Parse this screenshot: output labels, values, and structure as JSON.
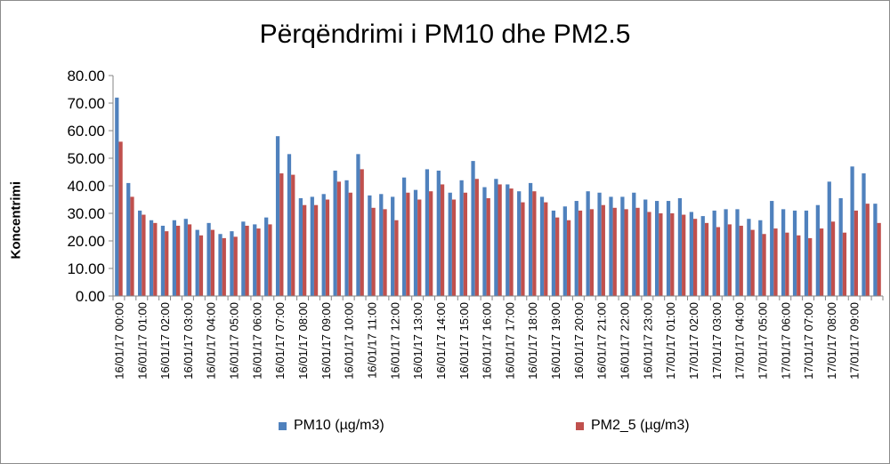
{
  "chart_data": {
    "type": "bar",
    "title": "Përqëndrimi i PM10 dhe PM2.5",
    "ylabel": "Koncentrimi",
    "xlabel": "",
    "ylim": [
      0,
      80
    ],
    "yticks": [
      "0.00",
      "10.00",
      "20.00",
      "30.00",
      "40.00",
      "50.00",
      "60.00",
      "70.00",
      "80.00"
    ],
    "grid": false,
    "legend_position": "bottom",
    "tick_labels": [
      "16/01/17 00:00",
      "16/01/17 01:00",
      "16/01/17 02:00",
      "16/01/17 03:00",
      "16/01/17 04:00",
      "16/01/17 05:00",
      "16/01/17 06:00",
      "16/01/17 07:00",
      "16/01/17 08:00",
      "16/01/17 09:00",
      "16/01/17 10:00",
      "16/01/17 11:00",
      "16/01/17 12:00",
      "16/01/17 13:00",
      "16/01/17 14:00",
      "16/01/17 15:00",
      "16/01/17 16:00",
      "16/01/17 17:00",
      "16/01/17 18:00",
      "16/01/17 19:00",
      "16/01/17 20:00",
      "16/01/17 21:00",
      "16/01/17 22:00",
      "16/01/17 23:00",
      "17/01/17 01:00",
      "17/01/17 02:00",
      "17/01/17 03:00",
      "17/01/17 04:00",
      "17/01/17 05:00",
      "17/01/17 06:00",
      "17/01/17 07:00",
      "17/01/17 08:00",
      "17/01/17 09:00"
    ],
    "series": [
      {
        "name": "PM10 (µg/m3)",
        "color": "#4f81bd",
        "values": [
          72.0,
          41.0,
          31.0,
          27.5,
          25.5,
          27.5,
          28.0,
          24.0,
          26.5,
          22.5,
          23.5,
          27.0,
          26.0,
          28.5,
          58.0,
          51.5,
          35.5,
          36.0,
          37.0,
          45.5,
          42.0,
          51.5,
          36.5,
          37.0,
          36.0,
          43.0,
          38.5,
          46.0,
          45.5,
          37.5,
          42.0,
          49.0,
          39.5,
          42.5,
          40.5,
          38.0,
          41.0,
          36.0,
          31.0,
          32.5,
          34.5,
          38.0,
          37.5,
          36.0,
          36.0,
          37.5,
          35.0,
          34.5,
          34.5,
          35.5,
          30.5,
          29.0,
          31.0,
          31.5,
          31.5,
          28.0,
          27.5,
          34.5,
          31.5,
          31.0,
          31.0,
          33.0,
          41.5,
          35.5,
          47.0,
          44.5,
          33.5
        ]
      },
      {
        "name": "PM2_5 (µg/m3)",
        "color": "#c0504d",
        "values": [
          56.0,
          36.0,
          29.5,
          26.5,
          23.5,
          25.5,
          26.0,
          22.0,
          24.0,
          21.0,
          21.5,
          25.5,
          24.5,
          26.0,
          44.5,
          44.0,
          33.0,
          33.0,
          35.0,
          41.5,
          37.5,
          46.0,
          32.0,
          31.5,
          27.5,
          37.5,
          35.0,
          38.0,
          40.5,
          35.0,
          37.5,
          42.5,
          35.5,
          40.5,
          39.0,
          34.0,
          38.0,
          34.0,
          28.5,
          27.5,
          31.0,
          31.5,
          33.0,
          32.0,
          31.5,
          32.0,
          30.5,
          30.0,
          30.0,
          29.5,
          28.0,
          26.5,
          25.0,
          26.0,
          25.5,
          24.0,
          22.5,
          24.5,
          23.0,
          22.0,
          21.0,
          24.5,
          27.0,
          23.0,
          31.0,
          33.5,
          26.5
        ]
      }
    ]
  }
}
